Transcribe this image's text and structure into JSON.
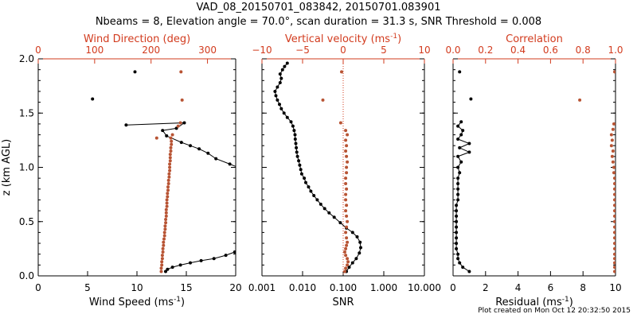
{
  "header": {
    "line1": "VAD_08_20150701_083842, 20150701.083901",
    "line2": "Nbeams = 8, Elevation angle = 70.0°, scan duration = 31.3 s, SNR Threshold = 0.008"
  },
  "footer": "Plot created on Mon Oct 12 20:32:50 2015",
  "colors": {
    "primary": "#000000",
    "secondary": "#d23b1e",
    "secondary_points": "#b85434"
  },
  "chart_data": [
    {
      "id": "wind",
      "type": "line",
      "ylabel": "z (km AGL)",
      "ylim": [
        0,
        2
      ],
      "yticks": [
        "0.0",
        "0.5",
        "1.0",
        "1.5",
        "2.0"
      ],
      "bottom_axis": {
        "label": "Wind Speed (ms",
        "label_sup": "-1",
        "label_tail": ")",
        "lim": [
          0,
          20
        ],
        "ticks": [
          "0",
          "5",
          "10",
          "15",
          "20"
        ]
      },
      "top_axis": {
        "label": "Wind Direction (deg)",
        "lim": [
          0,
          350
        ],
        "ticks": [
          "0",
          "100",
          "200",
          "300"
        ]
      },
      "series": [
        {
          "axis": "bottom",
          "lines": true,
          "points": [
            [
              12.9,
              0.04
            ],
            [
              13.1,
              0.06
            ],
            [
              13.6,
              0.08
            ],
            [
              14.4,
              0.1
            ],
            [
              15.4,
              0.12
            ],
            [
              16.5,
              0.14
            ],
            [
              17.8,
              0.16
            ],
            [
              19.0,
              0.19
            ],
            [
              19.9,
              0.22
            ],
            [
              20.2,
              0.24
            ],
            [
              20.5,
              0.99
            ],
            [
              19.4,
              1.03
            ],
            [
              18.0,
              1.08
            ],
            [
              17.2,
              1.13
            ],
            [
              16.3,
              1.17
            ],
            [
              15.4,
              1.2
            ],
            [
              14.5,
              1.23
            ],
            [
              13.0,
              1.29
            ],
            [
              12.6,
              1.34
            ],
            [
              14.0,
              1.36
            ],
            [
              14.8,
              1.41
            ],
            [
              8.9,
              1.39
            ]
          ]
        },
        {
          "axis": "bottom",
          "lines": false,
          "points": [
            [
              5.5,
              1.63
            ],
            [
              9.8,
              1.88
            ]
          ]
        },
        {
          "axis": "top",
          "lines": false,
          "points": [
            [
              218,
              0.04
            ],
            [
              218,
              0.07
            ],
            [
              219,
              0.1
            ],
            [
              219,
              0.13
            ],
            [
              220,
              0.16
            ],
            [
              220,
              0.19
            ],
            [
              221,
              0.22
            ],
            [
              221,
              0.25
            ],
            [
              222,
              0.28
            ],
            [
              222,
              0.31
            ],
            [
              223,
              0.34
            ],
            [
              224,
              0.37
            ],
            [
              224,
              0.4
            ],
            [
              225,
              0.43
            ],
            [
              225,
              0.46
            ],
            [
              226,
              0.49
            ],
            [
              226,
              0.52
            ],
            [
              227,
              0.55
            ],
            [
              227,
              0.58
            ],
            [
              227,
              0.61
            ],
            [
              228,
              0.64
            ],
            [
              228,
              0.67
            ],
            [
              228,
              0.7
            ],
            [
              229,
              0.73
            ],
            [
              229,
              0.76
            ],
            [
              230,
              0.79
            ],
            [
              230,
              0.82
            ],
            [
              231,
              0.85
            ],
            [
              231,
              0.88
            ],
            [
              232,
              0.91
            ],
            [
              232,
              0.94
            ],
            [
              233,
              0.97
            ],
            [
              233,
              1.0
            ],
            [
              233,
              1.03
            ],
            [
              234,
              1.06
            ],
            [
              234,
              1.09
            ],
            [
              234,
              1.12
            ],
            [
              235,
              1.15
            ],
            [
              235,
              1.18
            ],
            [
              236,
              1.21
            ],
            [
              236,
              1.24
            ],
            [
              235,
              1.27
            ],
            [
              238,
              1.3
            ],
            [
              210,
              1.27
            ],
            [
              248,
              1.38
            ],
            [
              252,
              1.41
            ],
            [
              255,
              1.62
            ],
            [
              253,
              1.88
            ]
          ]
        }
      ]
    },
    {
      "id": "snr",
      "type": "line",
      "ylim": [
        0,
        2
      ],
      "bottom_axis": {
        "label": "SNR",
        "scale": "log",
        "lim": [
          0.001,
          10
        ],
        "ticks": [
          "0.001",
          "0.010",
          "0.100",
          "1.000",
          "10.000"
        ]
      },
      "top_axis": {
        "label": "Vertical velocity (ms",
        "label_sup": "-1",
        "label_tail": ")",
        "lim": [
          -10,
          10
        ],
        "ticks": [
          "−10",
          "−5",
          "0",
          "5",
          "10"
        ]
      },
      "reference_line": {
        "axis": "top",
        "value": 0
      },
      "series": [
        {
          "axis": "bottom",
          "lines": true,
          "points": [
            [
              0.12,
              0.04
            ],
            [
              0.14,
              0.08
            ],
            [
              0.17,
              0.12
            ],
            [
              0.21,
              0.16
            ],
            [
              0.25,
              0.21
            ],
            [
              0.27,
              0.26
            ],
            [
              0.26,
              0.31
            ],
            [
              0.22,
              0.36
            ],
            [
              0.17,
              0.4
            ],
            [
              0.12,
              0.44
            ],
            [
              0.085,
              0.49
            ],
            [
              0.06,
              0.54
            ],
            [
              0.045,
              0.58
            ],
            [
              0.035,
              0.62
            ],
            [
              0.028,
              0.66
            ],
            [
              0.023,
              0.7
            ],
            [
              0.019,
              0.74
            ],
            [
              0.016,
              0.78
            ],
            [
              0.014,
              0.82
            ],
            [
              0.012,
              0.86
            ],
            [
              0.011,
              0.9
            ],
            [
              0.0095,
              0.94
            ],
            [
              0.009,
              0.98
            ],
            [
              0.0085,
              1.02
            ],
            [
              0.008,
              1.06
            ],
            [
              0.0075,
              1.1
            ],
            [
              0.0072,
              1.14
            ],
            [
              0.007,
              1.18
            ],
            [
              0.0068,
              1.22
            ],
            [
              0.0066,
              1.26
            ],
            [
              0.0065,
              1.3
            ],
            [
              0.0062,
              1.34
            ],
            [
              0.0058,
              1.38
            ],
            [
              0.0052,
              1.42
            ],
            [
              0.0042,
              1.46
            ],
            [
              0.0035,
              1.5
            ],
            [
              0.003,
              1.54
            ],
            [
              0.0027,
              1.58
            ],
            [
              0.0024,
              1.62
            ],
            [
              0.0022,
              1.66
            ],
            [
              0.0021,
              1.7
            ],
            [
              0.0024,
              1.74
            ],
            [
              0.0028,
              1.78
            ],
            [
              0.003,
              1.82
            ],
            [
              0.0028,
              1.86
            ],
            [
              0.0032,
              1.9
            ],
            [
              0.0036,
              1.93
            ],
            [
              0.0042,
              1.96
            ]
          ]
        },
        {
          "axis": "top",
          "lines": false,
          "points": [
            [
              0.2,
              0.04
            ],
            [
              0.3,
              0.07
            ],
            [
              0.5,
              0.1
            ],
            [
              0.6,
              0.13
            ],
            [
              0.5,
              0.16
            ],
            [
              0.3,
              0.19
            ],
            [
              0.2,
              0.22
            ],
            [
              0.3,
              0.25
            ],
            [
              0.4,
              0.28
            ],
            [
              0.5,
              0.31
            ],
            [
              0.4,
              0.35
            ],
            [
              0.3,
              0.4
            ],
            [
              0.4,
              0.45
            ],
            [
              0.5,
              0.5
            ],
            [
              0.4,
              0.55
            ],
            [
              0.3,
              0.6
            ],
            [
              0.4,
              0.65
            ],
            [
              0.3,
              0.7
            ],
            [
              0.3,
              0.75
            ],
            [
              0.4,
              0.8
            ],
            [
              0.3,
              0.85
            ],
            [
              0.3,
              0.9
            ],
            [
              0.4,
              0.95
            ],
            [
              0.4,
              1.0
            ],
            [
              0.5,
              1.05
            ],
            [
              0.4,
              1.1
            ],
            [
              0.3,
              1.15
            ],
            [
              0.4,
              1.2
            ],
            [
              0.3,
              1.25
            ],
            [
              0.5,
              1.3
            ],
            [
              0.3,
              1.34
            ],
            [
              -0.3,
              1.41
            ],
            [
              -2.5,
              1.62
            ],
            [
              -0.2,
              1.88
            ]
          ]
        }
      ]
    },
    {
      "id": "residual",
      "type": "line",
      "ylim": [
        0,
        2
      ],
      "bottom_axis": {
        "label": "Residual (ms",
        "label_sup": "-1",
        "label_tail": ")",
        "lim": [
          0,
          10
        ],
        "ticks": [
          "0",
          "2",
          "4",
          "6",
          "8",
          "10"
        ]
      },
      "top_axis": {
        "label": "Correlation",
        "lim": [
          0,
          1
        ],
        "ticks": [
          "0.0",
          "0.2",
          "0.4",
          "0.6",
          "0.8",
          "1.0"
        ]
      },
      "series": [
        {
          "axis": "bottom",
          "lines": true,
          "points": [
            [
              1.0,
              0.04
            ],
            [
              0.6,
              0.08
            ],
            [
              0.4,
              0.12
            ],
            [
              0.3,
              0.16
            ],
            [
              0.3,
              0.2
            ],
            [
              0.2,
              0.25
            ],
            [
              0.2,
              0.3
            ],
            [
              0.2,
              0.35
            ],
            [
              0.2,
              0.4
            ],
            [
              0.2,
              0.45
            ],
            [
              0.2,
              0.5
            ],
            [
              0.2,
              0.55
            ],
            [
              0.2,
              0.6
            ],
            [
              0.2,
              0.65
            ],
            [
              0.3,
              0.7
            ],
            [
              0.3,
              0.75
            ],
            [
              0.3,
              0.8
            ],
            [
              0.3,
              0.85
            ],
            [
              0.3,
              0.9
            ],
            [
              0.4,
              0.95
            ],
            [
              0.3,
              1.0
            ],
            [
              0.5,
              1.05
            ],
            [
              0.3,
              1.1
            ],
            [
              1.0,
              1.14
            ],
            [
              0.4,
              1.18
            ],
            [
              1.0,
              1.22
            ],
            [
              0.3,
              1.26
            ],
            [
              0.5,
              1.3
            ],
            [
              0.6,
              1.34
            ],
            [
              0.3,
              1.38
            ],
            [
              0.5,
              1.42
            ]
          ]
        },
        {
          "axis": "bottom",
          "lines": false,
          "points": [
            [
              1.1,
              1.63
            ],
            [
              0.4,
              1.88
            ]
          ]
        },
        {
          "axis": "top",
          "lines": false,
          "points": [
            [
              0.995,
              0.04
            ],
            [
              0.995,
              0.08
            ],
            [
              0.995,
              0.12
            ],
            [
              0.995,
              0.16
            ],
            [
              0.995,
              0.2
            ],
            [
              0.995,
              0.25
            ],
            [
              0.995,
              0.3
            ],
            [
              0.995,
              0.35
            ],
            [
              0.995,
              0.4
            ],
            [
              0.995,
              0.45
            ],
            [
              0.995,
              0.5
            ],
            [
              0.995,
              0.55
            ],
            [
              0.995,
              0.6
            ],
            [
              0.995,
              0.65
            ],
            [
              0.995,
              0.7
            ],
            [
              0.995,
              0.75
            ],
            [
              0.995,
              0.8
            ],
            [
              0.995,
              0.85
            ],
            [
              0.995,
              0.9
            ],
            [
              0.99,
              0.95
            ],
            [
              0.99,
              1.0
            ],
            [
              0.985,
              1.05
            ],
            [
              0.98,
              1.1
            ],
            [
              0.985,
              1.15
            ],
            [
              0.975,
              1.2
            ],
            [
              0.98,
              1.25
            ],
            [
              0.975,
              1.3
            ],
            [
              0.985,
              1.35
            ],
            [
              0.99,
              1.4
            ],
            [
              0.78,
              1.62
            ],
            [
              0.995,
              1.88
            ]
          ]
        }
      ]
    }
  ]
}
